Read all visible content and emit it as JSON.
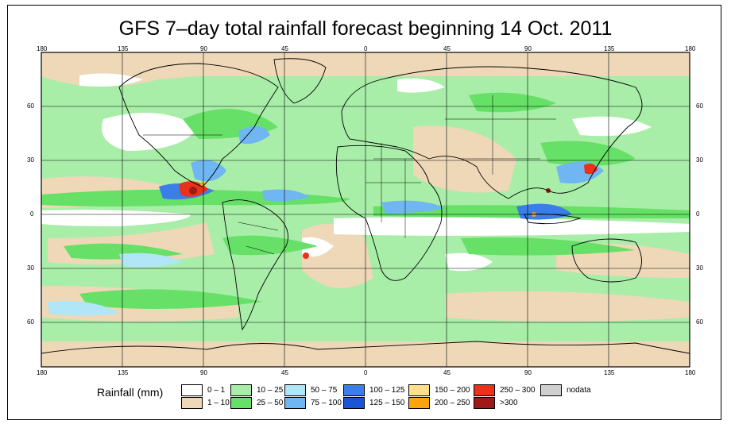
{
  "title": "GFS 7–day total rainfall forecast beginning 14 Oct. 2011",
  "lon_labels": [
    "180",
    "135",
    "90",
    "45",
    "0",
    "45",
    "90",
    "135",
    "180"
  ],
  "lat_labels": [
    "60",
    "30",
    "0",
    "30",
    "60"
  ],
  "legend": {
    "title": "Rainfall (mm)",
    "items": [
      {
        "label": "0 – 1",
        "color": "#ffffff"
      },
      {
        "label": "1 – 10",
        "color": "#eed8b8"
      },
      {
        "label": "10 – 25",
        "color": "#a8eda8"
      },
      {
        "label": "25 – 50",
        "color": "#66e066"
      },
      {
        "label": "50 – 75",
        "color": "#b0e6f5"
      },
      {
        "label": "75 – 100",
        "color": "#6fb6f2"
      },
      {
        "label": "100 – 125",
        "color": "#3c7ee8"
      },
      {
        "label": "125 – 150",
        "color": "#1a55d8"
      },
      {
        "label": "150 – 200",
        "color": "#ffe08a"
      },
      {
        "label": "200 – 250",
        "color": "#ffa30f"
      },
      {
        "label": "250 – 300",
        "color": "#e8321a"
      },
      {
        "label": ">300",
        "color": "#a01818"
      },
      {
        "label": "nodata",
        "color": "#cfcfcf"
      }
    ]
  }
}
